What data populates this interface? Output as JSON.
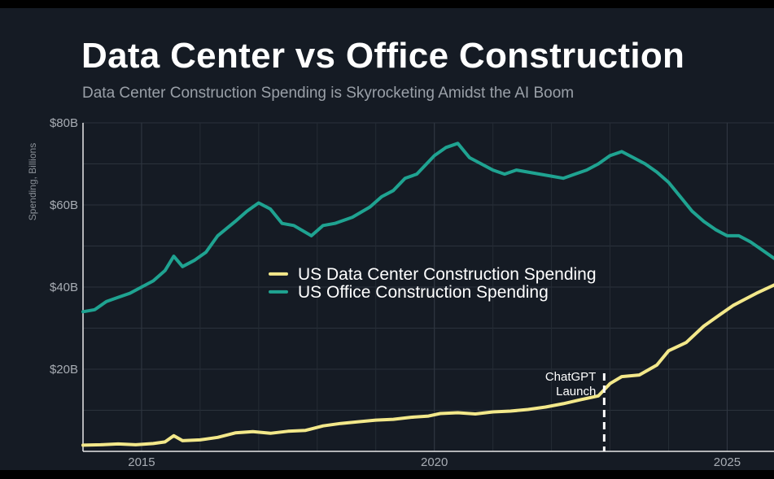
{
  "chart_data": {
    "type": "line",
    "title": "Data Center vs Office Construction",
    "subtitle": "Data Center Construction Spending is Skyrocketing Amidst the AI Boom",
    "ylabel": "Spending, Billions",
    "xlabel": "",
    "xlim": [
      2014.0,
      2025.8
    ],
    "ylim": [
      0,
      80
    ],
    "grid": true,
    "legend_position": "center",
    "x_ticks": [
      {
        "value": 2015,
        "label": "2015"
      },
      {
        "value": 2020,
        "label": "2020"
      },
      {
        "value": 2025,
        "label": "2025"
      }
    ],
    "y_ticks": [
      {
        "value": 20,
        "label": "$20B"
      },
      {
        "value": 40,
        "label": "$40B"
      },
      {
        "value": 60,
        "label": "$60B"
      },
      {
        "value": 80,
        "label": "$80B"
      }
    ],
    "series": [
      {
        "name": "US Data Center Construction Spending",
        "color": "#f3e88a",
        "x": [
          2014.0,
          2014.3,
          2014.6,
          2014.9,
          2015.2,
          2015.4,
          2015.55,
          2015.7,
          2016.0,
          2016.3,
          2016.6,
          2016.9,
          2017.2,
          2017.5,
          2017.8,
          2018.1,
          2018.4,
          2018.7,
          2019.0,
          2019.3,
          2019.6,
          2019.9,
          2020.1,
          2020.4,
          2020.7,
          2021.0,
          2021.3,
          2021.6,
          2021.9,
          2022.2,
          2022.5,
          2022.8,
          2023.0,
          2023.2,
          2023.5,
          2023.8,
          2024.0,
          2024.3,
          2024.6,
          2024.9,
          2025.1,
          2025.3,
          2025.5,
          2025.8
        ],
        "values": [
          1.5,
          1.6,
          1.8,
          1.6,
          1.9,
          2.3,
          3.8,
          2.6,
          2.8,
          3.4,
          4.5,
          4.8,
          4.4,
          4.9,
          5.1,
          6.2,
          6.8,
          7.2,
          7.6,
          7.8,
          8.3,
          8.6,
          9.2,
          9.4,
          9.1,
          9.6,
          9.8,
          10.2,
          10.8,
          11.6,
          12.6,
          13.5,
          16.5,
          18.2,
          18.6,
          21.0,
          24.5,
          26.5,
          30.5,
          33.5,
          35.5,
          37.0,
          38.5,
          40.5
        ]
      },
      {
        "name": "US Office Construction Spending",
        "color": "#1fa391",
        "x": [
          2014.0,
          2014.2,
          2014.4,
          2014.6,
          2014.8,
          2015.0,
          2015.2,
          2015.4,
          2015.55,
          2015.7,
          2015.9,
          2016.1,
          2016.3,
          2016.6,
          2016.8,
          2017.0,
          2017.2,
          2017.4,
          2017.6,
          2017.9,
          2018.1,
          2018.3,
          2018.6,
          2018.9,
          2019.1,
          2019.3,
          2019.5,
          2019.7,
          2019.9,
          2020.0,
          2020.2,
          2020.4,
          2020.6,
          2020.8,
          2021.0,
          2021.2,
          2021.4,
          2021.6,
          2021.8,
          2022.0,
          2022.2,
          2022.4,
          2022.6,
          2022.8,
          2023.0,
          2023.2,
          2023.4,
          2023.6,
          2023.8,
          2024.0,
          2024.2,
          2024.4,
          2024.6,
          2024.8,
          2025.0,
          2025.2,
          2025.4,
          2025.6,
          2025.8
        ],
        "values": [
          34.0,
          34.5,
          36.5,
          37.5,
          38.5,
          40.0,
          41.5,
          44.0,
          47.5,
          45.0,
          46.5,
          48.5,
          52.5,
          56.0,
          58.5,
          60.5,
          59.0,
          55.5,
          55.0,
          52.5,
          55.0,
          55.5,
          57.0,
          59.5,
          62.0,
          63.5,
          66.5,
          67.5,
          70.5,
          72.0,
          74.0,
          75.0,
          71.5,
          70.0,
          68.5,
          67.5,
          68.5,
          68.0,
          67.5,
          67.0,
          66.5,
          67.5,
          68.5,
          70.0,
          72.0,
          73.0,
          71.5,
          70.0,
          68.0,
          65.5,
          62.0,
          58.5,
          56.0,
          54.0,
          52.5,
          52.5,
          51.0,
          49.0,
          47.0
        ]
      }
    ],
    "annotations": [
      {
        "x": 2022.9,
        "label_line1": "ChatGPT",
        "label_line2": "Launch"
      }
    ]
  }
}
